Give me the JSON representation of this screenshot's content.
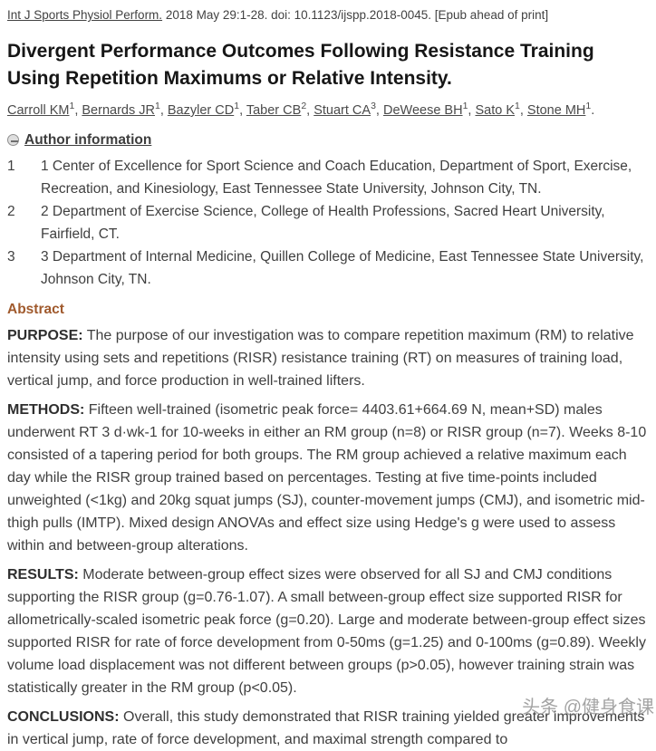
{
  "citation": {
    "journal": "Int J Sports Physiol Perform.",
    "rest": " 2018 May 29:1-28. doi: 10.1123/ijspp.2018-0045. [Epub ahead of print]"
  },
  "title": "Divergent Performance Outcomes Following Resistance Training Using Repetition Maximums or Relative Intensity.",
  "authors": [
    {
      "name": "Carroll KM",
      "sup": "1",
      "sep": ", "
    },
    {
      "name": "Bernards JR",
      "sup": "1",
      "sep": ", "
    },
    {
      "name": "Bazyler CD",
      "sup": "1",
      "sep": ", "
    },
    {
      "name": "Taber CB",
      "sup": "2",
      "sep": ", "
    },
    {
      "name": "Stuart CA",
      "sup": "3",
      "sep": ", "
    },
    {
      "name": "DeWeese BH",
      "sup": "1",
      "sep": ", "
    },
    {
      "name": "Sato K",
      "sup": "1",
      "sep": ", "
    },
    {
      "name": "Stone MH",
      "sup": "1",
      "sep": "."
    }
  ],
  "author_info": {
    "toggle_label": "Author information",
    "collapse_icon": "minus-circle-icon",
    "affiliations": [
      {
        "num": "1",
        "text": "1 Center of Excellence for Sport Science and Coach Education, Department of Sport, Exercise, Recreation, and Kinesiology, East Tennessee State University, Johnson City, TN."
      },
      {
        "num": "2",
        "text": "2 Department of Exercise Science, College of Health Professions, Sacred Heart University, Fairfield, CT."
      },
      {
        "num": "3",
        "text": "3 Department of Internal Medicine, Quillen College of Medicine, East Tennessee State University, Johnson City, TN."
      }
    ]
  },
  "abstract": {
    "heading": "Abstract",
    "sections": [
      {
        "label": "PURPOSE:",
        "text": "The purpose of our investigation was to compare repetition maximum (RM) to relative intensity using sets and repetitions (RISR) resistance training (RT) on measures of training load, vertical jump, and force production in well-trained lifters."
      },
      {
        "label": "METHODS:",
        "text": "Fifteen well-trained (isometric peak force= 4403.61+664.69 N, mean+SD) males underwent RT 3 d·wk-1 for 10-weeks in either an RM group (n=8) or RISR group (n=7). Weeks 8-10 consisted of a tapering period for both groups. The RM group achieved a relative maximum each day while the RISR group trained based on percentages. Testing at five time-points included unweighted (<1kg) and 20kg squat jumps (SJ), counter-movement jumps (CMJ), and isometric mid-thigh pulls (IMTP). Mixed design ANOVAs and effect size using Hedge's g were used to assess within and between-group alterations."
      },
      {
        "label": "RESULTS:",
        "text": "Moderate between-group effect sizes were observed for all SJ and CMJ conditions supporting the RISR group (g=0.76-1.07). A small between-group effect size supported RISR for allometrically-scaled isometric peak force (g=0.20). Large and moderate between-group effect sizes supported RISR for rate of force development from 0-50ms (g=1.25) and 0-100ms (g=0.89). Weekly volume load displacement was not different between groups (p>0.05), however training strain was statistically greater in the RM group (p<0.05)."
      },
      {
        "label": "CONCLUSIONS:",
        "text": "Overall, this study demonstrated that RISR training yielded greater improvements in vertical jump, rate of force development, and maximal strength compared to"
      }
    ]
  },
  "watermark": "头条 @健身食课",
  "colors": {
    "abstract_heading": "#a05a2d",
    "body_text": "#3f3f3f",
    "link": "#4a4a4a",
    "watermark": "#808080"
  }
}
